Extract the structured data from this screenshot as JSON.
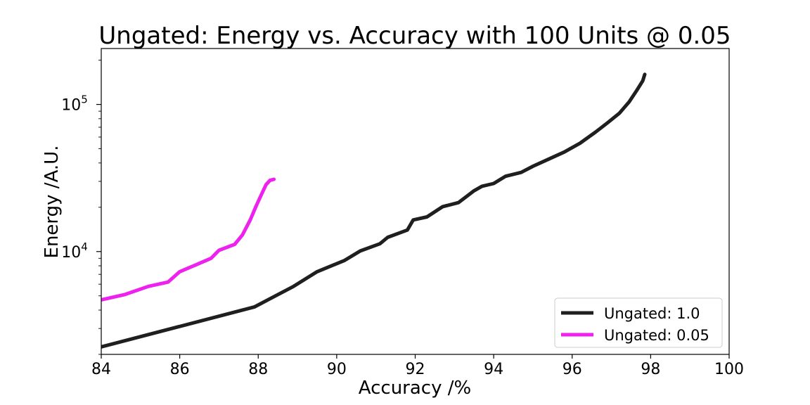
{
  "chart_data": {
    "type": "line",
    "title": "Ungated: Energy vs. Accuracy with 100 Units @ 0.05",
    "xlabel": "Accuracy /%",
    "ylabel": "Energy /A.U.",
    "xlim": [
      84,
      100
    ],
    "ylim": [
      2000,
      240000
    ],
    "yscale": "log",
    "grid": false,
    "legend_position": "lower-right",
    "x_ticks": [
      {
        "value": 84,
        "label": "84"
      },
      {
        "value": 86,
        "label": "86"
      },
      {
        "value": 88,
        "label": "88"
      },
      {
        "value": 90,
        "label": "90"
      },
      {
        "value": 92,
        "label": "92"
      },
      {
        "value": 94,
        "label": "94"
      },
      {
        "value": 96,
        "label": "96"
      },
      {
        "value": 98,
        "label": "98"
      },
      {
        "value": 100,
        "label": "100"
      }
    ],
    "y_ticks": [
      {
        "value": 10000,
        "base": "10",
        "exp": "4"
      },
      {
        "value": 100000,
        "base": "10",
        "exp": "5"
      }
    ],
    "series": [
      {
        "name": "Ungated: 1.0",
        "color": "#1f1f1f",
        "points": [
          [
            84.0,
            2250
          ],
          [
            87.9,
            4200
          ],
          [
            88.9,
            5800
          ],
          [
            89.5,
            7300
          ],
          [
            90.2,
            8700
          ],
          [
            90.6,
            10100
          ],
          [
            91.1,
            11300
          ],
          [
            91.3,
            12500
          ],
          [
            91.8,
            14000
          ],
          [
            91.95,
            16400
          ],
          [
            92.3,
            17200
          ],
          [
            92.7,
            20200
          ],
          [
            93.1,
            21500
          ],
          [
            93.3,
            23600
          ],
          [
            93.5,
            25900
          ],
          [
            93.7,
            27800
          ],
          [
            94.0,
            29000
          ],
          [
            94.3,
            32500
          ],
          [
            94.7,
            34500
          ],
          [
            95.0,
            38000
          ],
          [
            95.4,
            42500
          ],
          [
            95.8,
            47500
          ],
          [
            96.2,
            54500
          ],
          [
            96.6,
            65000
          ],
          [
            96.9,
            75000
          ],
          [
            97.2,
            87000
          ],
          [
            97.45,
            104000
          ],
          [
            97.65,
            125000
          ],
          [
            97.8,
            145000
          ],
          [
            97.85,
            160000
          ]
        ]
      },
      {
        "name": "Ungated: 0.05",
        "color": "#ee22ee",
        "points": [
          [
            84.0,
            4700
          ],
          [
            84.6,
            5100
          ],
          [
            85.2,
            5800
          ],
          [
            85.7,
            6200
          ],
          [
            86.0,
            7300
          ],
          [
            86.4,
            8100
          ],
          [
            86.8,
            9000
          ],
          [
            87.0,
            10200
          ],
          [
            87.4,
            11200
          ],
          [
            87.6,
            13000
          ],
          [
            87.8,
            16500
          ],
          [
            87.95,
            20500
          ],
          [
            88.1,
            25000
          ],
          [
            88.2,
            28500
          ],
          [
            88.3,
            30500
          ],
          [
            88.4,
            31000
          ]
        ]
      }
    ]
  }
}
